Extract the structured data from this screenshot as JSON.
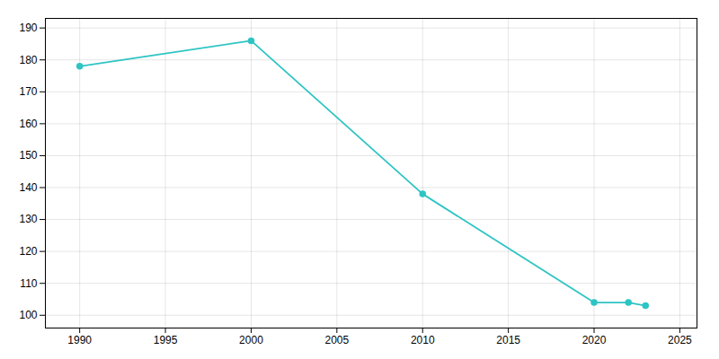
{
  "chart_data": {
    "type": "line",
    "x": [
      1990,
      2000,
      2010,
      2020,
      2022,
      2023
    ],
    "values": [
      178,
      186,
      138,
      104,
      104,
      103
    ],
    "color": "#2EC4C4",
    "marker": "circle",
    "xlim": [
      1988,
      2026
    ],
    "ylim": [
      96,
      193
    ],
    "xticks": [
      1990,
      1995,
      2000,
      2005,
      2010,
      2015,
      2020,
      2025
    ],
    "yticks": [
      100,
      110,
      120,
      130,
      140,
      150,
      160,
      170,
      180,
      190
    ],
    "grid": true
  }
}
